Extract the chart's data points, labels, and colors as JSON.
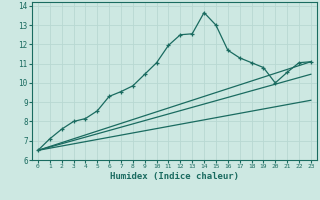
{
  "xlabel": "Humidex (Indice chaleur)",
  "background_color": "#cde8e2",
  "grid_color": "#b8d8d2",
  "line_color": "#1a6b60",
  "xlim": [
    -0.5,
    23.5
  ],
  "ylim": [
    6,
    14.2
  ],
  "xticks": [
    0,
    1,
    2,
    3,
    4,
    5,
    6,
    7,
    8,
    9,
    10,
    11,
    12,
    13,
    14,
    15,
    16,
    17,
    18,
    19,
    20,
    21,
    22,
    23
  ],
  "yticks": [
    6,
    7,
    8,
    9,
    10,
    11,
    12,
    13,
    14
  ],
  "series1_x": [
    0,
    1,
    2,
    3,
    4,
    5,
    6,
    7,
    8,
    9,
    10,
    11,
    12,
    13,
    14,
    15,
    16,
    17,
    18,
    19,
    20,
    21,
    22,
    23
  ],
  "series1_y": [
    6.5,
    7.1,
    7.6,
    8.0,
    8.15,
    8.55,
    9.3,
    9.55,
    9.85,
    10.45,
    11.05,
    11.95,
    12.5,
    12.55,
    13.65,
    13.0,
    11.7,
    11.3,
    11.05,
    10.8,
    10.0,
    10.55,
    11.05,
    11.1
  ],
  "linear1_y_end": 11.1,
  "linear2_y_end": 10.45,
  "linear3_y_end": 9.1,
  "linear_x_start": 0,
  "linear_y_start": 6.5,
  "linear_x_end": 23
}
